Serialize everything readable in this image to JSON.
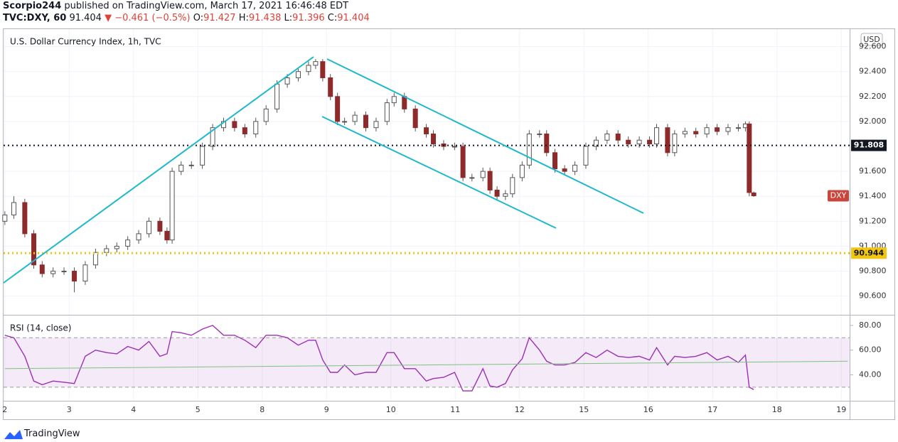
{
  "header": {
    "author": "Scorpio244",
    "published": "published on TradingView.com, March 17, 2021 16:46:48 EDT",
    "symbol": "TVC:DXY, 60",
    "last": "91.404",
    "change": "−0.461 (−0.5%)",
    "o_label": "O:",
    "open": "91.427",
    "h_label": "H:",
    "high": "91.438",
    "l_label": "L:",
    "low": "91.396",
    "c_label": "C:",
    "close": "91.404"
  },
  "footer": {
    "brand": "TradingView"
  },
  "chart_data": [
    {
      "type": "candlestick",
      "title": "U.S. Dollar Currency Index, 1h, TVC",
      "unit_label": "USD",
      "x": [
        0,
        0.14,
        0.31,
        0.45,
        0.58,
        0.75,
        0.92,
        1.08,
        1.25,
        1.41,
        1.58,
        1.74,
        1.91,
        2.08,
        2.24,
        2.41,
        2.52,
        2.6,
        2.74,
        2.9,
        3.07,
        3.23,
        3.4,
        3.57,
        3.73,
        3.9,
        4.06,
        4.23,
        4.39,
        4.56,
        4.72,
        4.83,
        4.94,
        5.06,
        5.17,
        5.28,
        5.44,
        5.61,
        5.77,
        5.94,
        6.05,
        6.21,
        6.38,
        6.55,
        6.66,
        6.82,
        6.99,
        7.12,
        7.26,
        7.43,
        7.54,
        7.65,
        7.78,
        7.89,
        8.04,
        8.15,
        8.31,
        8.42,
        8.55,
        8.7,
        8.86,
        9.03,
        9.19,
        9.36,
        9.53,
        9.69,
        9.86,
        10.02,
        10.13,
        10.3,
        10.41,
        10.57,
        10.74,
        10.91,
        11.07,
        11.24,
        11.4,
        11.51,
        11.57,
        11.64
      ],
      "open": [
        91.2,
        91.25,
        91.35,
        91.1,
        90.85,
        90.78,
        90.8,
        90.8,
        90.72,
        90.85,
        90.95,
        90.98,
        91.0,
        91.05,
        91.1,
        91.2,
        91.12,
        91.05,
        91.6,
        91.65,
        91.65,
        91.8,
        91.95,
        92.0,
        91.95,
        91.9,
        92.0,
        92.1,
        92.3,
        92.35,
        92.4,
        92.45,
        92.48,
        92.35,
        92.2,
        92.0,
        92.0,
        92.05,
        91.95,
        92.0,
        92.15,
        92.2,
        92.1,
        91.95,
        91.9,
        91.82,
        91.8,
        91.8,
        91.55,
        91.55,
        91.6,
        91.45,
        91.4,
        91.42,
        91.55,
        91.65,
        91.9,
        91.9,
        91.75,
        91.62,
        91.6,
        91.65,
        91.8,
        91.85,
        91.9,
        91.85,
        91.82,
        91.85,
        91.82,
        91.95,
        91.75,
        91.9,
        91.92,
        91.9,
        91.95,
        91.92,
        91.95,
        91.95,
        91.98,
        91.427
      ],
      "high": [
        91.28,
        91.4,
        91.38,
        91.13,
        90.88,
        90.83,
        90.83,
        90.83,
        90.88,
        90.98,
        91.01,
        91.03,
        91.08,
        91.13,
        91.23,
        91.23,
        91.15,
        91.63,
        91.68,
        91.68,
        91.83,
        91.98,
        92.03,
        92.03,
        91.98,
        92.03,
        92.13,
        92.33,
        92.38,
        92.43,
        92.48,
        92.5,
        92.5,
        92.38,
        92.23,
        92.03,
        92.08,
        92.08,
        92.03,
        92.18,
        92.23,
        92.23,
        92.13,
        91.98,
        91.93,
        91.85,
        91.83,
        91.83,
        91.58,
        91.63,
        91.63,
        91.48,
        91.45,
        91.58,
        91.68,
        91.93,
        91.93,
        91.93,
        91.78,
        91.65,
        91.68,
        91.83,
        91.88,
        91.93,
        91.93,
        91.88,
        91.88,
        91.88,
        91.98,
        91.98,
        91.93,
        91.95,
        91.95,
        91.98,
        91.98,
        91.98,
        91.98,
        92.0,
        92.0,
        91.438
      ],
      "low": [
        91.17,
        91.22,
        91.07,
        90.82,
        90.75,
        90.75,
        90.77,
        90.63,
        90.69,
        90.82,
        90.92,
        90.95,
        90.97,
        91.02,
        91.07,
        91.09,
        91.02,
        91.02,
        91.57,
        91.62,
        91.62,
        91.77,
        91.92,
        91.92,
        91.87,
        91.87,
        91.97,
        92.07,
        92.27,
        92.32,
        92.37,
        92.42,
        92.32,
        92.17,
        91.97,
        91.97,
        91.97,
        91.92,
        91.92,
        91.97,
        92.12,
        92.07,
        91.92,
        91.87,
        91.79,
        91.77,
        91.77,
        91.52,
        91.52,
        91.52,
        91.42,
        91.37,
        91.37,
        91.39,
        91.52,
        91.62,
        91.87,
        91.72,
        91.59,
        91.57,
        91.57,
        91.62,
        91.77,
        91.82,
        91.82,
        91.79,
        91.79,
        91.79,
        91.79,
        91.72,
        91.72,
        91.87,
        91.87,
        91.87,
        91.89,
        91.89,
        91.92,
        91.92,
        91.4,
        91.396
      ],
      "close": [
        91.25,
        91.35,
        91.1,
        90.85,
        90.78,
        90.8,
        90.8,
        90.72,
        90.85,
        90.95,
        90.98,
        91.0,
        91.05,
        91.1,
        91.2,
        91.12,
        91.05,
        91.6,
        91.65,
        91.65,
        91.8,
        91.95,
        92.0,
        91.95,
        91.9,
        92.0,
        92.1,
        92.3,
        92.35,
        92.4,
        92.45,
        92.48,
        92.35,
        92.2,
        92.0,
        92.0,
        92.05,
        91.95,
        92.0,
        92.15,
        92.2,
        92.1,
        91.95,
        91.9,
        91.82,
        91.8,
        91.8,
        91.55,
        91.55,
        91.6,
        91.45,
        91.4,
        91.42,
        91.55,
        91.65,
        91.9,
        91.9,
        91.75,
        91.62,
        91.6,
        91.65,
        91.8,
        91.85,
        91.9,
        91.85,
        91.82,
        91.85,
        91.82,
        91.95,
        91.75,
        91.9,
        91.92,
        91.9,
        91.95,
        91.92,
        91.95,
        91.95,
        91.98,
        91.43,
        91.404
      ],
      "up_color": "#ffffff",
      "down_color": "#8e2a2a",
      "wick_color": "#555555",
      "xlim": [
        -0.02,
        13.13
      ],
      "ylim": [
        90.45,
        92.74
      ],
      "yticks": [
        {
          "value": 90.6,
          "label": "90.600"
        },
        {
          "value": 90.8,
          "label": "90.800"
        },
        {
          "value": 91.0,
          "label": "91.000"
        },
        {
          "value": 91.2,
          "label": "91.200"
        },
        {
          "value": 91.4,
          "label": "91.400"
        },
        {
          "value": 91.6,
          "label": "91.600"
        },
        {
          "value": 91.8,
          "label": "91.800"
        },
        {
          "value": 92.0,
          "label": "92.000"
        },
        {
          "value": 92.2,
          "label": "92.200"
        },
        {
          "value": 92.4,
          "label": "92.400"
        },
        {
          "value": 92.6,
          "label": "92.600"
        }
      ],
      "hlines": [
        {
          "value": 91.808,
          "color": "#131722",
          "text_color": "#ffffff"
        },
        {
          "value": 90.944,
          "color": "#f2c511",
          "text_color": "#131722"
        }
      ],
      "price_marker": {
        "label": "DXY",
        "value": 91.404,
        "color": "#c8463c"
      },
      "grid": true
    },
    {
      "type": "line",
      "title": "RSI (14, close)",
      "series": [
        {
          "color": "#9b30b5",
          "x": [
            0,
            0.14,
            0.31,
            0.45,
            0.58,
            0.75,
            0.92,
            1.08,
            1.25,
            1.41,
            1.58,
            1.74,
            1.91,
            2.08,
            2.24,
            2.41,
            2.52,
            2.6,
            2.74,
            2.9,
            3.07,
            3.23,
            3.4,
            3.57,
            3.73,
            3.9,
            4.06,
            4.23,
            4.39,
            4.56,
            4.72,
            4.83,
            4.94,
            5.06,
            5.17,
            5.28,
            5.44,
            5.61,
            5.77,
            5.94,
            6.05,
            6.21,
            6.38,
            6.55,
            6.66,
            6.82,
            6.99,
            7.12,
            7.26,
            7.43,
            7.54,
            7.65,
            7.78,
            7.89,
            8.04,
            8.15,
            8.31,
            8.42,
            8.55,
            8.7,
            8.86,
            9.03,
            9.19,
            9.36,
            9.53,
            9.69,
            9.86,
            10.02,
            10.13,
            10.3,
            10.41,
            10.57,
            10.74,
            10.91,
            11.07,
            11.24,
            11.4,
            11.51,
            11.57,
            11.64
          ],
          "values": [
            72,
            70,
            55,
            35,
            32,
            35,
            34,
            33,
            55,
            60,
            58,
            57,
            63,
            60,
            67,
            55,
            57,
            75,
            74,
            72,
            77,
            80,
            72,
            72,
            68,
            62,
            72,
            72,
            70,
            64,
            68,
            68,
            52,
            42,
            42,
            48,
            40,
            42,
            42,
            58,
            58,
            45,
            45,
            35,
            37,
            38,
            42,
            27,
            27,
            45,
            31,
            30,
            33,
            44,
            53,
            70,
            60,
            51,
            48,
            48,
            50,
            58,
            54,
            60,
            55,
            54,
            55,
            52,
            62,
            48,
            55,
            54,
            55,
            58,
            52,
            55,
            50,
            56,
            30,
            28
          ]
        },
        {
          "color": "#7cc47f",
          "x": [
            0,
            13.1
          ],
          "values": [
            45,
            51
          ]
        }
      ],
      "band": [
        30,
        70
      ],
      "band_color": "#9b30b5",
      "xlim": [
        -0.02,
        13.13
      ],
      "ylim": [
        19,
        88
      ],
      "yticks": [
        {
          "value": 40,
          "label": "40.00"
        },
        {
          "value": 60,
          "label": "60.00"
        },
        {
          "value": 80,
          "label": "80.00"
        }
      ],
      "xticks": [
        {
          "value": 0,
          "label": "2"
        },
        {
          "value": 1,
          "label": "3"
        },
        {
          "value": 2,
          "label": "4"
        },
        {
          "value": 3,
          "label": "5"
        },
        {
          "value": 4,
          "label": "8"
        },
        {
          "value": 5,
          "label": "9"
        },
        {
          "value": 6,
          "label": "10"
        },
        {
          "value": 7,
          "label": "11"
        },
        {
          "value": 8,
          "label": "12"
        },
        {
          "value": 9,
          "label": "15"
        },
        {
          "value": 10,
          "label": "16"
        },
        {
          "value": 11,
          "label": "17"
        },
        {
          "value": 12,
          "label": "18"
        },
        {
          "value": 13,
          "label": "19"
        }
      ],
      "grid": true
    }
  ]
}
